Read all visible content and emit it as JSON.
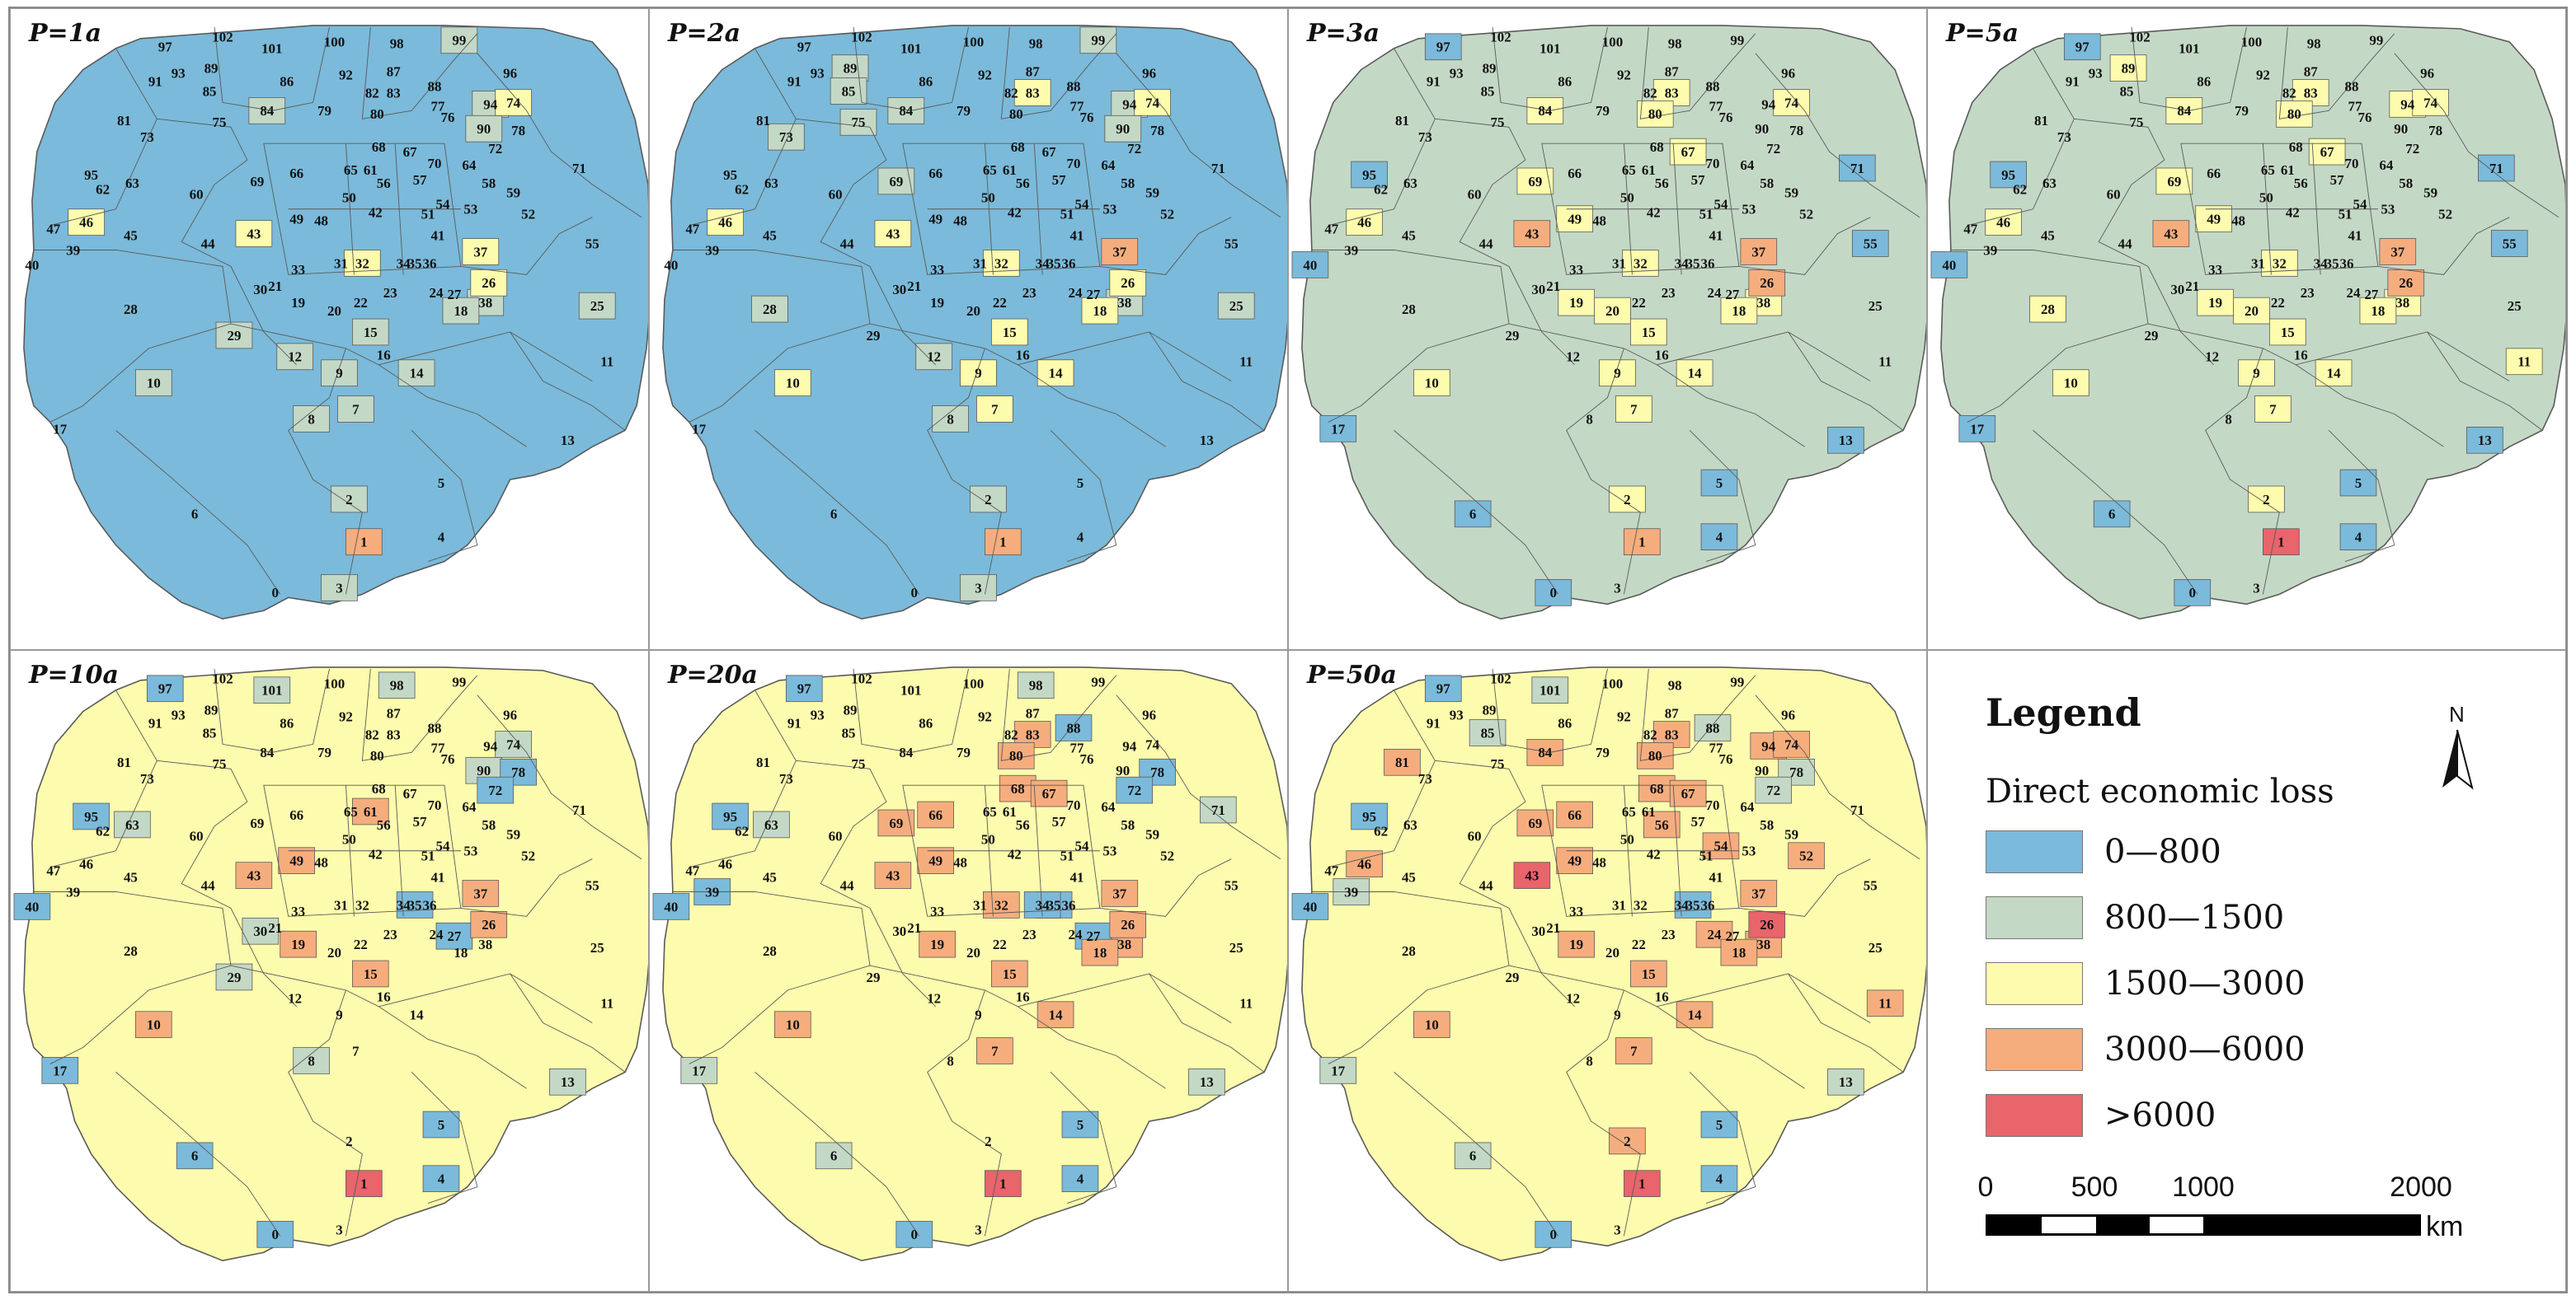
{
  "legend": {
    "title": "Legend",
    "subtitle": "Direct economic loss",
    "classes": [
      {
        "label": "0—800",
        "color": "#7bbada"
      },
      {
        "label": "800—1500",
        "color": "#c4d8c6"
      },
      {
        "label": "1500—3000",
        "color": "#fdfbad"
      },
      {
        "label": "3000—6000",
        "color": "#f6ad7e"
      },
      {
        "label": ">6000",
        "color": "#e9646b"
      }
    ],
    "north_label": "N",
    "scale": {
      "ticks": [
        "0",
        "500",
        "1000",
        "2000"
      ],
      "unit": "km"
    }
  },
  "outline_color": "#c4d8c6",
  "boundary_color": "#5a5a5a",
  "panels": [
    {
      "label": "P=1a",
      "base_class": 0,
      "overrides": {
        "1": 3,
        "2": 1,
        "3": 1,
        "7": 1,
        "8": 1,
        "9": 1,
        "10": 1,
        "12": 1,
        "14": 1,
        "15": 1,
        "25": 1,
        "29": 1,
        "37": 2,
        "26": 2,
        "38": 1,
        "18": 1,
        "43": 2,
        "46": 2,
        "32": 2,
        "74": 2,
        "84": 1,
        "94": 1,
        "90": 1,
        "99": 1
      }
    },
    {
      "label": "P=2a",
      "base_class": 0,
      "overrides": {
        "1": 3,
        "2": 1,
        "3": 1,
        "7": 2,
        "8": 1,
        "9": 2,
        "10": 2,
        "12": 1,
        "14": 2,
        "15": 2,
        "18": 2,
        "26": 2,
        "37": 3,
        "38": 1,
        "25": 1,
        "28": 1,
        "43": 2,
        "46": 2,
        "32": 2,
        "74": 2,
        "83": 2,
        "84": 1,
        "94": 1,
        "90": 1,
        "99": 1,
        "73": 1,
        "89": 1,
        "85": 1,
        "75": 1,
        "69": 1
      }
    },
    {
      "label": "P=3a",
      "base_class": 1,
      "overrides": {
        "1": 3,
        "2": 2,
        "7": 2,
        "9": 2,
        "10": 2,
        "14": 2,
        "15": 2,
        "18": 2,
        "26": 3,
        "37": 3,
        "38": 2,
        "43": 3,
        "46": 2,
        "32": 2,
        "74": 2,
        "83": 2,
        "84": 2,
        "69": 2,
        "80": 2,
        "67": 2,
        "49": 2,
        "19": 2,
        "20": 2,
        "6": 0,
        "5": 0,
        "4": 0,
        "0": 0,
        "13": 0,
        "55": 0,
        "95": 0,
        "97": 0,
        "71": 0,
        "40": 0,
        "17": 0
      }
    },
    {
      "label": "P=5a",
      "base_class": 1,
      "overrides": {
        "1": 4,
        "2": 2,
        "7": 2,
        "9": 2,
        "10": 2,
        "14": 2,
        "15": 2,
        "18": 2,
        "26": 3,
        "37": 3,
        "38": 2,
        "43": 3,
        "46": 2,
        "32": 2,
        "74": 2,
        "83": 2,
        "84": 2,
        "69": 2,
        "80": 2,
        "67": 2,
        "49": 2,
        "19": 2,
        "20": 2,
        "28": 2,
        "11": 2,
        "94": 2,
        "89": 2,
        "6": 0,
        "5": 0,
        "4": 0,
        "0": 0,
        "13": 0,
        "55": 0,
        "95": 0,
        "97": 0,
        "71": 0,
        "40": 0,
        "17": 0
      }
    },
    {
      "label": "P=10a",
      "base_class": 2,
      "overrides": {
        "1": 4,
        "10": 3,
        "15": 3,
        "19": 3,
        "26": 3,
        "37": 3,
        "43": 3,
        "49": 3,
        "61": 3,
        "6": 0,
        "5": 0,
        "4": 0,
        "0": 0,
        "95": 0,
        "97": 0,
        "40": 0,
        "17": 0,
        "72": 0,
        "78": 0,
        "35": 0,
        "27": 0,
        "13": 1,
        "29": 1,
        "8": 1,
        "101": 1,
        "98": 1,
        "90": 1,
        "63": 1,
        "30": 1,
        "74": 1
      }
    },
    {
      "label": "P=20a",
      "base_class": 2,
      "overrides": {
        "1": 4,
        "7": 3,
        "10": 3,
        "14": 3,
        "15": 3,
        "18": 3,
        "19": 3,
        "26": 3,
        "37": 3,
        "38": 3,
        "43": 3,
        "49": 3,
        "66": 3,
        "69": 3,
        "32": 3,
        "80": 3,
        "83": 3,
        "67": 3,
        "68": 3,
        "6": 1,
        "17": 1,
        "13": 1,
        "0": 0,
        "5": 0,
        "4": 0,
        "95": 0,
        "97": 0,
        "40": 0,
        "39": 0,
        "72": 0,
        "78": 0,
        "88": 0,
        "35": 0,
        "34": 0,
        "27": 0,
        "63": 1,
        "71": 1,
        "98": 1
      }
    },
    {
      "label": "P=50a",
      "base_class": 2,
      "overrides": {
        "1": 4,
        "26": 4,
        "43": 4,
        "2": 3,
        "7": 3,
        "10": 3,
        "14": 3,
        "15": 3,
        "18": 3,
        "19": 3,
        "24": 3,
        "37": 3,
        "38": 3,
        "46": 3,
        "49": 3,
        "52": 3,
        "54": 3,
        "56": 3,
        "66": 3,
        "69": 3,
        "67": 3,
        "68": 3,
        "80": 3,
        "81": 3,
        "83": 3,
        "84": 3,
        "94": 3,
        "74": 3,
        "11": 3,
        "6": 1,
        "17": 1,
        "13": 1,
        "0": 0,
        "5": 0,
        "4": 0,
        "95": 0,
        "97": 0,
        "40": 0,
        "35": 0,
        "72": 1,
        "78": 1,
        "88": 1,
        "85": 1,
        "101": 1,
        "39": 1
      }
    }
  ],
  "zones": [
    {
      "id": "102",
      "label": "102"
    },
    {
      "id": "101",
      "label": "101"
    },
    {
      "id": "100",
      "label": "100"
    },
    {
      "id": "98",
      "label": "98"
    },
    {
      "id": "99",
      "label": "99"
    },
    {
      "id": "97",
      "label": "97"
    },
    {
      "id": "96",
      "label": "96"
    },
    {
      "id": "95",
      "label": "95"
    },
    {
      "id": "94",
      "label": "94"
    },
    {
      "id": "93",
      "label": "93"
    },
    {
      "id": "92",
      "label": "92"
    },
    {
      "id": "91",
      "label": "91"
    },
    {
      "id": "90",
      "label": "90"
    },
    {
      "id": "89",
      "label": "89"
    },
    {
      "id": "88",
      "label": "88"
    },
    {
      "id": "87",
      "label": "87"
    },
    {
      "id": "86",
      "label": "86"
    },
    {
      "id": "85",
      "label": "85"
    },
    {
      "id": "84",
      "label": "84"
    },
    {
      "id": "83",
      "label": "83"
    },
    {
      "id": "82",
      "label": "82"
    },
    {
      "id": "81",
      "label": "81"
    },
    {
      "id": "80",
      "label": "80"
    },
    {
      "id": "79",
      "label": "79"
    },
    {
      "id": "78",
      "label": "78"
    },
    {
      "id": "77",
      "label": "77"
    },
    {
      "id": "76",
      "label": "76"
    },
    {
      "id": "75",
      "label": "75"
    },
    {
      "id": "74",
      "label": "74"
    },
    {
      "id": "73",
      "label": "73"
    },
    {
      "id": "72",
      "label": "72"
    },
    {
      "id": "71",
      "label": "71"
    },
    {
      "id": "70",
      "label": "70"
    },
    {
      "id": "69",
      "label": "69"
    },
    {
      "id": "68",
      "label": "68"
    },
    {
      "id": "67",
      "label": "67"
    },
    {
      "id": "66",
      "label": "66"
    },
    {
      "id": "65",
      "label": "65"
    },
    {
      "id": "64",
      "label": "64"
    },
    {
      "id": "63",
      "label": "63"
    },
    {
      "id": "62",
      "label": "62"
    },
    {
      "id": "61",
      "label": "61"
    },
    {
      "id": "60",
      "label": "60"
    },
    {
      "id": "59",
      "label": "59"
    },
    {
      "id": "58",
      "label": "58"
    },
    {
      "id": "57",
      "label": "57"
    },
    {
      "id": "56",
      "label": "56"
    },
    {
      "id": "55",
      "label": "55"
    },
    {
      "id": "54",
      "label": "54"
    },
    {
      "id": "53",
      "label": "53"
    },
    {
      "id": "52",
      "label": "52"
    },
    {
      "id": "51",
      "label": "51"
    },
    {
      "id": "50",
      "label": "50"
    },
    {
      "id": "49",
      "label": "49"
    },
    {
      "id": "48",
      "label": "48"
    },
    {
      "id": "47",
      "label": "47"
    },
    {
      "id": "46",
      "label": "46"
    },
    {
      "id": "45",
      "label": "45"
    },
    {
      "id": "44",
      "label": "44"
    },
    {
      "id": "43",
      "label": "43"
    },
    {
      "id": "42",
      "label": "42"
    },
    {
      "id": "41",
      "label": "41"
    },
    {
      "id": "40",
      "label": "40"
    },
    {
      "id": "39",
      "label": "39"
    },
    {
      "id": "38",
      "label": "38"
    },
    {
      "id": "37",
      "label": "37"
    },
    {
      "id": "36",
      "label": "36"
    },
    {
      "id": "35",
      "label": "35"
    },
    {
      "id": "34",
      "label": "34"
    },
    {
      "id": "33",
      "label": "33"
    },
    {
      "id": "32",
      "label": "32"
    },
    {
      "id": "31",
      "label": "31"
    },
    {
      "id": "30",
      "label": "30"
    },
    {
      "id": "29",
      "label": "29"
    },
    {
      "id": "28",
      "label": "28"
    },
    {
      "id": "27",
      "label": "27"
    },
    {
      "id": "26",
      "label": "26"
    },
    {
      "id": "25",
      "label": "25"
    },
    {
      "id": "24",
      "label": "24"
    },
    {
      "id": "23",
      "label": "23"
    },
    {
      "id": "22",
      "label": "22"
    },
    {
      "id": "21",
      "label": "21"
    },
    {
      "id": "20",
      "label": "20"
    },
    {
      "id": "19",
      "label": "19"
    },
    {
      "id": "18",
      "label": "18"
    },
    {
      "id": "17",
      "label": "17"
    },
    {
      "id": "16",
      "label": "16"
    },
    {
      "id": "15",
      "label": "15"
    },
    {
      "id": "14",
      "label": "14"
    },
    {
      "id": "13",
      "label": "13"
    },
    {
      "id": "12",
      "label": "12"
    },
    {
      "id": "11",
      "label": "11"
    },
    {
      "id": "10",
      "label": "10"
    },
    {
      "id": "9",
      "label": "9"
    },
    {
      "id": "8",
      "label": "8"
    },
    {
      "id": "7",
      "label": "7"
    },
    {
      "id": "6",
      "label": "6"
    },
    {
      "id": "5",
      "label": "5"
    },
    {
      "id": "4",
      "label": "4"
    },
    {
      "id": "3",
      "label": "3"
    },
    {
      "id": "2",
      "label": "2"
    },
    {
      "id": "1",
      "label": "1"
    },
    {
      "id": "0",
      "label": "0"
    }
  ]
}
